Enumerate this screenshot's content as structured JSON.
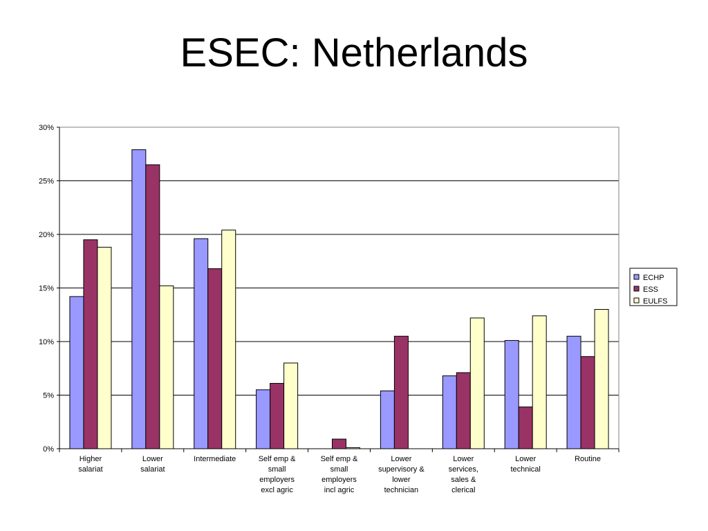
{
  "slide": {
    "title": "ESEC: Netherlands"
  },
  "chart_data": {
    "type": "bar",
    "title": "",
    "xlabel": "",
    "ylabel": "",
    "ylim": [
      0,
      30
    ],
    "y_ticks": [
      0,
      5,
      10,
      15,
      20,
      25,
      30
    ],
    "y_tick_labels": [
      "0%",
      "5%",
      "10%",
      "15%",
      "20%",
      "25%",
      "30%"
    ],
    "grid": true,
    "legend_position": "right",
    "categories": [
      [
        "Higher",
        "salariat"
      ],
      [
        "Lower",
        "salariat"
      ],
      [
        "Intermediate"
      ],
      [
        "Self emp &",
        "small",
        "employers",
        "excl agric"
      ],
      [
        "Self emp &",
        "small",
        "employers",
        "incl agric"
      ],
      [
        "Lower",
        "supervisory &",
        "lower",
        "technician"
      ],
      [
        "Lower",
        "services,",
        "sales &",
        "clerical"
      ],
      [
        "Lower",
        "technical"
      ],
      [
        "Routine"
      ]
    ],
    "series": [
      {
        "name": "ECHP",
        "color": "#9999ff",
        "values": [
          14.2,
          27.9,
          19.6,
          5.5,
          0,
          5.4,
          6.8,
          10.1,
          10.5
        ]
      },
      {
        "name": "ESS",
        "color": "#993366",
        "values": [
          19.5,
          26.5,
          16.8,
          6.1,
          0.9,
          10.5,
          7.1,
          3.9,
          8.6
        ]
      },
      {
        "name": "EULFS",
        "color": "#ffffcc",
        "values": [
          18.8,
          15.2,
          20.4,
          8.0,
          0.1,
          0,
          12.2,
          12.4,
          13.0
        ]
      }
    ]
  }
}
